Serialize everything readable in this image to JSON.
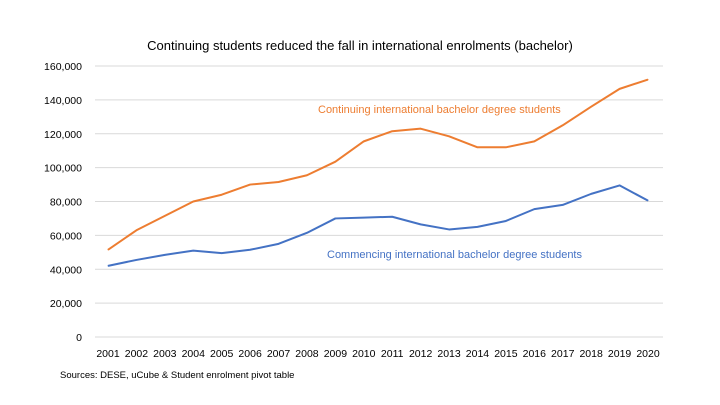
{
  "chart_data": {
    "type": "line",
    "title": "Continuing students reduced the fall in international enrolments (bachelor)",
    "x": [
      "2001",
      "2002",
      "2003",
      "2004",
      "2005",
      "2006",
      "2007",
      "2008",
      "2009",
      "2010",
      "2011",
      "2012",
      "2013",
      "2014",
      "2015",
      "2016",
      "2017",
      "2018",
      "2019",
      "2020"
    ],
    "yticks": [
      "0",
      "20,000",
      "40,000",
      "60,000",
      "80,000",
      "100,000",
      "120,000",
      "140,000",
      "160,000"
    ],
    "ylim": [
      0,
      160000
    ],
    "grid": true,
    "series": [
      {
        "name": "Continuing international bachelor degree students",
        "color": "#ED7D31",
        "values": [
          51500,
          63000,
          71500,
          80000,
          84000,
          90000,
          91500,
          95500,
          103500,
          115500,
          121500,
          123000,
          118500,
          112000,
          112000,
          115500,
          125000,
          136000,
          146500,
          152000
        ]
      },
      {
        "name": "Commencing international bachelor degree students",
        "color": "#4472C4",
        "values": [
          42000,
          45500,
          48500,
          51000,
          49500,
          51500,
          55000,
          61500,
          70000,
          70500,
          71000,
          66500,
          63500,
          65000,
          68500,
          75500,
          78000,
          84500,
          89500,
          80500
        ]
      }
    ]
  },
  "source": "Sources: DESE, uCube & Student enrolment pivot table"
}
